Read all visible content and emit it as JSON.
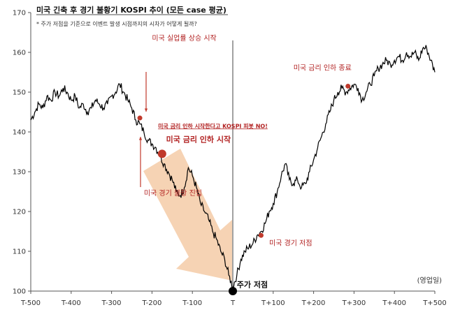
{
  "chart_data": {
    "type": "line",
    "title": "미국 긴축 후 경기 불황기 KOSPI 추이 (모든 case 평균)",
    "subtitle": "* 주가 저점을 기준으로 이벤트 발생 시점까지의 시차가 어떻게 될까?",
    "x_unit": "(영업일)",
    "xlim": [
      -500,
      500
    ],
    "ylim": [
      100,
      170
    ],
    "x_ticks": [
      -500,
      -400,
      -300,
      -200,
      -100,
      0,
      100,
      200,
      300,
      400,
      500
    ],
    "x_tick_labels": [
      "T-500",
      "T-400",
      "T-300",
      "T-200",
      "T-100",
      "T",
      "T+100",
      "T+200",
      "T+300",
      "T+400",
      "T+500"
    ],
    "y_ticks": [
      100,
      110,
      120,
      130,
      140,
      150,
      160,
      170
    ],
    "y_tick_labels": [
      "100",
      "110",
      "120",
      "130",
      "140",
      "150",
      "160",
      "170"
    ],
    "series": [
      {
        "values": [
          [
            -500,
            143
          ],
          [
            -490,
            145
          ],
          [
            -480,
            147
          ],
          [
            -470,
            146
          ],
          [
            -460,
            149
          ],
          [
            -450,
            148
          ],
          [
            -440,
            150
          ],
          [
            -430,
            149
          ],
          [
            -420,
            151
          ],
          [
            -410,
            150
          ],
          [
            -400,
            148
          ],
          [
            -390,
            149
          ],
          [
            -380,
            146
          ],
          [
            -370,
            147
          ],
          [
            -360,
            145
          ],
          [
            -350,
            146
          ],
          [
            -340,
            148
          ],
          [
            -330,
            147
          ],
          [
            -320,
            146
          ],
          [
            -310,
            147
          ],
          [
            -300,
            149
          ],
          [
            -290,
            150
          ],
          [
            -280,
            152
          ],
          [
            -270,
            150
          ],
          [
            -260,
            148
          ],
          [
            -250,
            146
          ],
          [
            -240,
            143
          ],
          [
            -230,
            142
          ],
          [
            -220,
            140
          ],
          [
            -210,
            138
          ],
          [
            -200,
            137
          ],
          [
            -190,
            136
          ],
          [
            -180,
            134
          ],
          [
            -170,
            132
          ],
          [
            -160,
            130
          ],
          [
            -150,
            128
          ],
          [
            -140,
            125
          ],
          [
            -130,
            124
          ],
          [
            -120,
            126
          ],
          [
            -110,
            131
          ],
          [
            -100,
            129
          ],
          [
            -90,
            126
          ],
          [
            -80,
            122
          ],
          [
            -70,
            120
          ],
          [
            -60,
            118
          ],
          [
            -50,
            115
          ],
          [
            -40,
            113
          ],
          [
            -30,
            110
          ],
          [
            -20,
            108
          ],
          [
            -10,
            104
          ],
          [
            0,
            101
          ],
          [
            10,
            104
          ],
          [
            20,
            108
          ],
          [
            30,
            110
          ],
          [
            40,
            111
          ],
          [
            50,
            112
          ],
          [
            60,
            114
          ],
          [
            70,
            115
          ],
          [
            80,
            117
          ],
          [
            90,
            120
          ],
          [
            100,
            122
          ],
          [
            110,
            125
          ],
          [
            120,
            129
          ],
          [
            130,
            132
          ],
          [
            140,
            128
          ],
          [
            150,
            127
          ],
          [
            160,
            128
          ],
          [
            170,
            126
          ],
          [
            180,
            127
          ],
          [
            190,
            130
          ],
          [
            200,
            133
          ],
          [
            210,
            136
          ],
          [
            220,
            139
          ],
          [
            230,
            142
          ],
          [
            240,
            145
          ],
          [
            250,
            148
          ],
          [
            260,
            150
          ],
          [
            270,
            151
          ],
          [
            280,
            150
          ],
          [
            290,
            151
          ],
          [
            300,
            152
          ],
          [
            310,
            151
          ],
          [
            320,
            148
          ],
          [
            330,
            150
          ],
          [
            340,
            152
          ],
          [
            350,
            154
          ],
          [
            360,
            156
          ],
          [
            370,
            157
          ],
          [
            380,
            158
          ],
          [
            390,
            157
          ],
          [
            400,
            158
          ],
          [
            410,
            159
          ],
          [
            420,
            158
          ],
          [
            430,
            160
          ],
          [
            440,
            159
          ],
          [
            450,
            160
          ],
          [
            460,
            158
          ],
          [
            470,
            161
          ],
          [
            480,
            161
          ],
          [
            490,
            158
          ],
          [
            500,
            155
          ]
        ]
      }
    ],
    "markers": [
      {
        "x": -230,
        "y": 143.5,
        "size": "small",
        "color": "#c0392b"
      },
      {
        "x": -175,
        "y": 134.5,
        "size": "large",
        "color": "#c0392b"
      },
      {
        "x": 0,
        "y": 100,
        "size": "large",
        "color": "#000000"
      },
      {
        "x": 70,
        "y": 114,
        "size": "small",
        "color": "#c0392b"
      },
      {
        "x": 285,
        "y": 151.5,
        "size": "small",
        "color": "#c0392b"
      }
    ],
    "vertical_line_x": 0,
    "annotations": [
      {
        "text": "미국 실업률 상승 시작",
        "x": -200,
        "y": 163,
        "style": "red"
      },
      {
        "text": "미국 금리 인하 시작한다고 KOSPI 피봇 NO!",
        "x": -185,
        "y": 141,
        "style": "red-small-underline"
      },
      {
        "text": "미국 금리 인하 시작",
        "x": -165,
        "y": 137.5,
        "style": "red-bold"
      },
      {
        "text": "미국 경기 불황 진입",
        "x": -220,
        "y": 124,
        "style": "red"
      },
      {
        "text": "주가 저점",
        "x": 10,
        "y": 101,
        "style": "black-bold"
      },
      {
        "text": "미국 경기 저점",
        "x": 90,
        "y": 111.5,
        "style": "red"
      },
      {
        "text": "미국 금리 인하 종료",
        "x": 150,
        "y": 155.5,
        "style": "red"
      }
    ],
    "grid": false,
    "colors": {
      "line": "#000000",
      "accent": "#c0392b",
      "arrow": "#f5cba7"
    }
  }
}
